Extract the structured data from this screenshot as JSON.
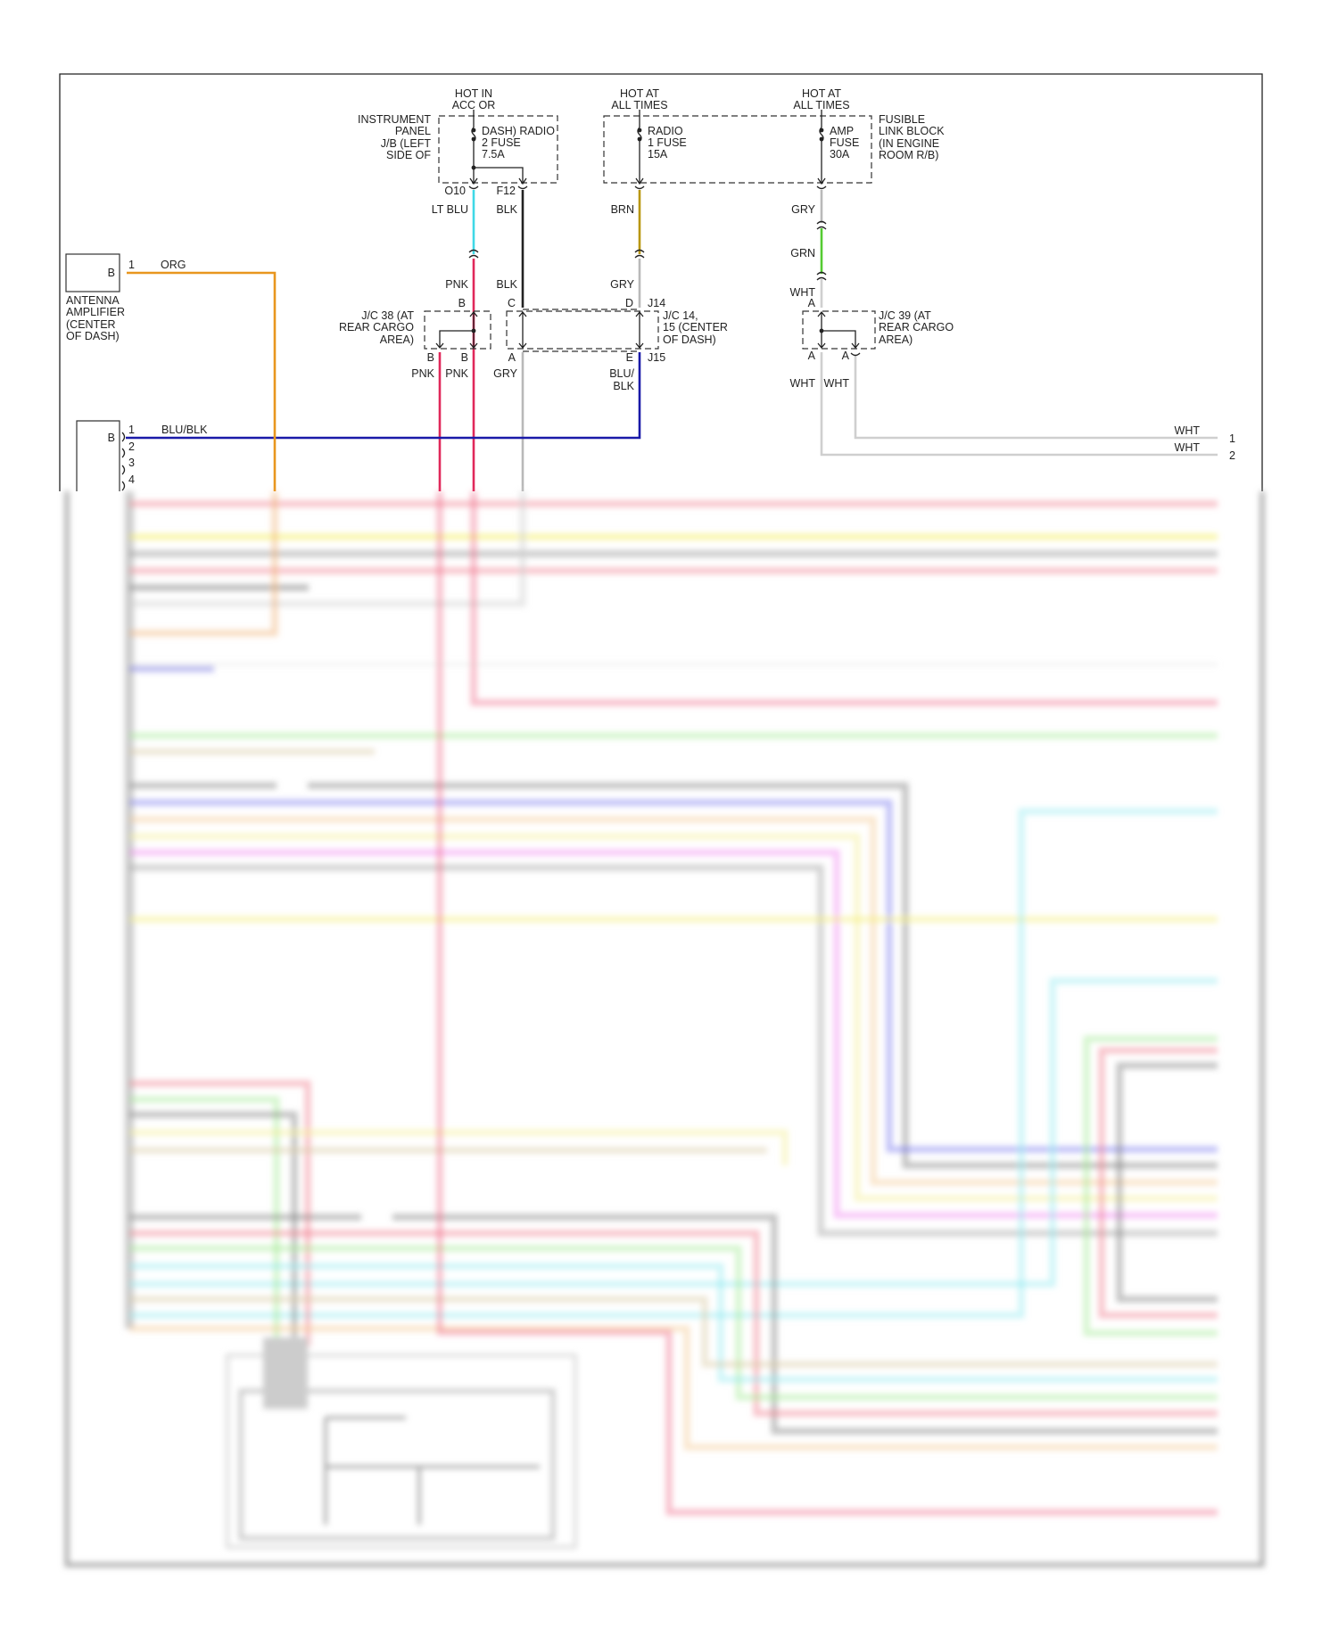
{
  "colors": {
    "lt_blu": "#3fd8e6",
    "blk": "#222222",
    "brn": "#b8960c",
    "gry": "#b9b9b9",
    "grn": "#55cc33",
    "pnk": "#e0285a",
    "blu_blk": "#1a1aa8",
    "org": "#e8961e",
    "wht": "#cfcfcf"
  },
  "power": {
    "hot_acc": [
      "HOT IN",
      "ACC OR"
    ],
    "hot_all_1": [
      "HOT AT",
      "ALL TIMES"
    ],
    "hot_all_2": [
      "HOT AT",
      "ALL TIMES"
    ]
  },
  "instrument_panel": {
    "label": [
      "INSTRUMENT",
      "PANEL",
      "J/B (LEFT",
      "SIDE OF"
    ],
    "fuse": [
      "DASH) RADIO",
      "2 FUSE",
      "7.5A"
    ],
    "pin_left": "O10",
    "pin_right": "F12"
  },
  "fusible_link": {
    "label": [
      "FUSIBLE",
      "LINK BLOCK",
      "(IN ENGINE",
      "ROOM R/B)"
    ],
    "radio_fuse": [
      "RADIO",
      "1 FUSE",
      "15A"
    ],
    "amp_fuse": [
      "AMP",
      "FUSE",
      "30A"
    ]
  },
  "wires": {
    "lt_blu": "LT BLU",
    "blk1": "BLK",
    "brn": "BRN",
    "gry1": "GRY",
    "grn": "GRN",
    "pnk": "PNK",
    "blk2": "BLK",
    "gry2": "GRY",
    "wht1": "WHT",
    "pnk_b1": "PNK",
    "pnk_b2": "PNK",
    "gry3": "GRY",
    "blu_blk": [
      "BLU/",
      "BLK"
    ],
    "wht_a1": "WHT",
    "wht_a2": "WHT",
    "org": "ORG",
    "blu_blk_h": "BLU/BLK",
    "wht_out1": "WHT",
    "wht_out2": "WHT"
  },
  "jc38": {
    "label": [
      "J/C 38 (AT",
      "REAR CARGO",
      "AREA)"
    ],
    "pin_top": "B",
    "pin_b1": "B",
    "pin_b2": "B"
  },
  "jc14": {
    "label": [
      "J/C 14,",
      "15 (CENTER",
      "OF DASH)"
    ],
    "pin_c": "C",
    "pin_d": "D",
    "conn_top": "J14",
    "pin_a": "A",
    "pin_e": "E",
    "conn_bottom": "J15"
  },
  "jc39": {
    "label": [
      "J/C 39 (AT",
      "REAR CARGO",
      "AREA)"
    ],
    "pin_top": "A",
    "pin_b1": "A",
    "pin_b2": "A"
  },
  "antenna_amp": {
    "connector": "B",
    "pin": "1",
    "label": [
      "ANTENNA",
      "AMPLIFIER",
      "(CENTER",
      "OF DASH)"
    ]
  },
  "connector_b2": {
    "connector": "B",
    "pins": [
      "1",
      "2",
      "3",
      "4"
    ]
  },
  "output_pins": [
    "1",
    "2"
  ]
}
